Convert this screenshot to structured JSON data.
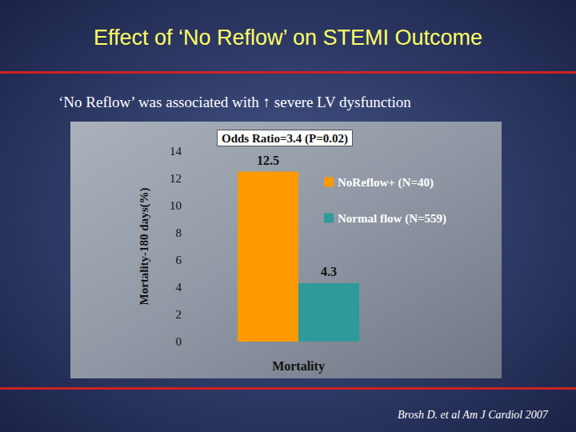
{
  "chart_data": {
    "type": "bar",
    "title": "Effect of ‘No Reflow’ on STEMI Outcome",
    "subtitle": "‘No Reflow’ was associated with ↑ severe LV dysfunction",
    "categories": [
      "Mortality"
    ],
    "series": [
      {
        "name": "NoReflow+ (N=40)",
        "color": "#ff9900",
        "values": [
          12.5
        ]
      },
      {
        "name": "Normal flow (N=559)",
        "color": "#2e9a9a",
        "values": [
          4.3
        ]
      }
    ],
    "y_label": "Mortality-180 days(%)",
    "ylim": [
      0,
      14
    ],
    "yticks": [
      0,
      2,
      4,
      6,
      8,
      10,
      12,
      14
    ],
    "grid": false,
    "legend": "upper right",
    "data_labels": true,
    "annotations": [
      "Odds Ratio=3.4 (P=0.02)",
      "Brosh D. et al Am J Cardiol 2007"
    ]
  }
}
